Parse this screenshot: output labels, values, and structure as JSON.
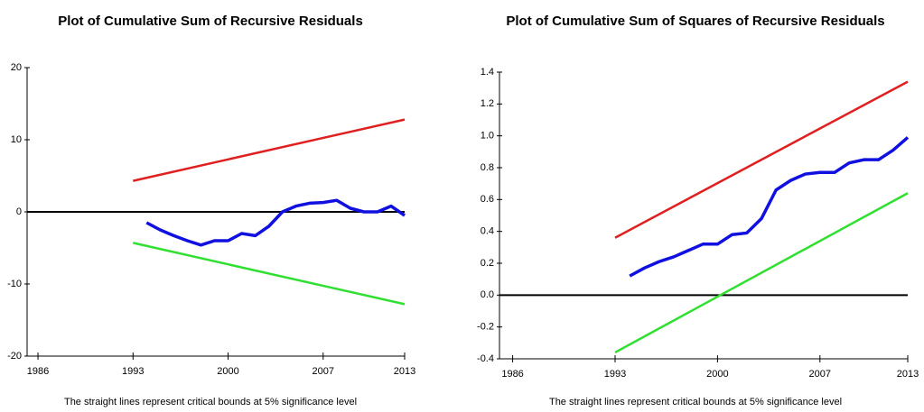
{
  "chart_data": [
    {
      "type": "line",
      "title": "Plot of Cumulative Sum of Recursive Residuals",
      "note": "The straight lines represent critical bounds at 5% significance level",
      "xlim": [
        1985.2,
        2013
      ],
      "xticks": [
        1986,
        1993,
        2000,
        2007,
        2013
      ],
      "ylim": [
        -20,
        20
      ],
      "yticks": [
        -20,
        -10,
        0,
        10,
        20
      ],
      "hlines": [
        0
      ],
      "series": [
        {
          "color": "#e02020",
          "x": [
            1993,
            2013
          ],
          "values": [
            4.3,
            12.8
          ]
        },
        {
          "color": "#30e030",
          "x": [
            1993,
            2013
          ],
          "values": [
            -4.3,
            -12.8
          ]
        },
        {
          "color": "#1010e0",
          "x": [
            1994,
            1995,
            1996,
            1997,
            1998,
            1999,
            2000,
            2001,
            2002,
            2003,
            2004,
            2005,
            2006,
            2007,
            2008,
            2009,
            2010,
            2011,
            2012,
            2013
          ],
          "values": [
            -1.5,
            -2.5,
            -3.3,
            -4,
            -4.6,
            -4,
            -4,
            -3,
            -3.3,
            -2,
            0,
            0.8,
            1.2,
            1.3,
            1.6,
            0.5,
            0,
            0,
            0.8,
            -0.5
          ]
        }
      ]
    },
    {
      "type": "line",
      "title": "Plot of Cumulative Sum of Squares of Recursive Residuals",
      "note": "The straight lines represent critical bounds at 5% significance level",
      "xlim": [
        1985.1,
        2013
      ],
      "xticks": [
        1986,
        1993,
        2000,
        2007,
        2013
      ],
      "ylim": [
        -0.4,
        1.4
      ],
      "yticks": [
        -0.4,
        -0.2,
        {
          "value": 0,
          "label": "0.0"
        },
        0.2,
        0.4,
        0.6,
        0.8,
        {
          "value": 1,
          "label": "1.0"
        },
        1.2,
        1.4
      ],
      "hlines": [
        0
      ],
      "series": [
        {
          "color": "#e02020",
          "x": [
            1993,
            2013
          ],
          "values": [
            0.36,
            1.34
          ]
        },
        {
          "color": "#30e030",
          "x": [
            1993,
            2013
          ],
          "values": [
            -0.36,
            0.64
          ]
        },
        {
          "color": "#1010e0",
          "x": [
            1994,
            1995,
            1996,
            1997,
            1998,
            1999,
            2000,
            2001,
            2002,
            2003,
            2004,
            2005,
            2006,
            2007,
            2008,
            2009,
            2010,
            2011,
            2012,
            2013
          ],
          "values": [
            0.12,
            0.17,
            0.21,
            0.24,
            0.28,
            0.32,
            0.32,
            0.38,
            0.39,
            0.48,
            0.66,
            0.72,
            0.76,
            0.77,
            0.77,
            0.83,
            0.85,
            0.85,
            0.91,
            0.99
          ]
        }
      ]
    }
  ]
}
